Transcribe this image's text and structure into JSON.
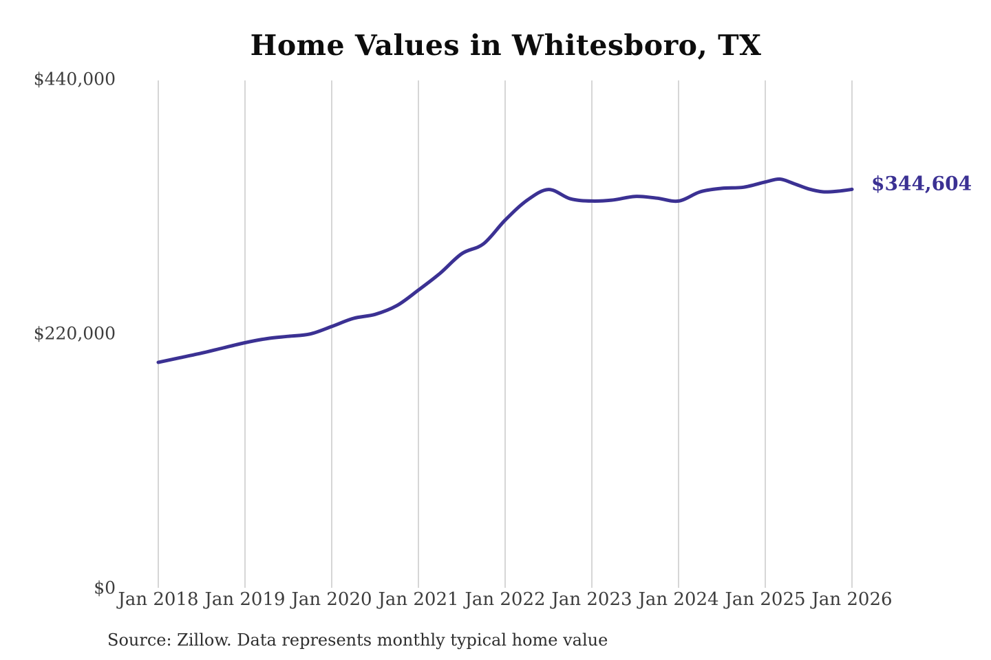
{
  "chart": {
    "title": "Home Values in Whitesboro, TX",
    "latest_value_label": "$344,604",
    "source": "Source: Zillow. Data represents monthly typical home value"
  },
  "colors": {
    "line": "#3b3193",
    "annotation_text": "#3b3193",
    "gridline": "#cccccc",
    "axis_text": "#3d3d3d",
    "title_text": "#0d0d0d",
    "background": "#ffffff"
  },
  "chart_data": {
    "type": "line",
    "title": "Home Values in Whitesboro, TX",
    "series_name": "Monthly typical home value",
    "unit": "USD",
    "xlabel": "",
    "ylabel": "",
    "x_range": [
      "Jan 2018",
      "Jan 2026"
    ],
    "ylim": [
      0,
      440000
    ],
    "grid": "vertical-only",
    "legend": "none",
    "x_ticks": [
      "Jan 2018",
      "Jan 2019",
      "Jan 2020",
      "Jan 2021",
      "Jan 2022",
      "Jan 2023",
      "Jan 2024",
      "Jan 2025",
      "Jan 2026"
    ],
    "y_ticks": [
      {
        "label": "$0",
        "value": 0
      },
      {
        "label": "$220,000",
        "value": 220000
      },
      {
        "label": "$440,000",
        "value": 440000
      }
    ],
    "annotation": {
      "text": "$344,604",
      "value": 344604,
      "position": "end-of-line"
    },
    "points": [
      {
        "date": "2018-01",
        "value": 195000
      },
      {
        "date": "2018-04",
        "value": 199000
      },
      {
        "date": "2018-07",
        "value": 203000
      },
      {
        "date": "2018-10",
        "value": 207500
      },
      {
        "date": "2019-01",
        "value": 212000
      },
      {
        "date": "2019-04",
        "value": 215500
      },
      {
        "date": "2019-07",
        "value": 217500
      },
      {
        "date": "2019-10",
        "value": 219500
      },
      {
        "date": "2020-01",
        "value": 226000
      },
      {
        "date": "2020-04",
        "value": 233000
      },
      {
        "date": "2020-07",
        "value": 236500
      },
      {
        "date": "2020-10",
        "value": 244000
      },
      {
        "date": "2021-01",
        "value": 257500
      },
      {
        "date": "2021-04",
        "value": 272000
      },
      {
        "date": "2021-07",
        "value": 289000
      },
      {
        "date": "2021-10",
        "value": 297500
      },
      {
        "date": "2022-01",
        "value": 318000
      },
      {
        "date": "2022-04",
        "value": 335000
      },
      {
        "date": "2022-07",
        "value": 344500
      },
      {
        "date": "2022-10",
        "value": 336500
      },
      {
        "date": "2023-01",
        "value": 334500
      },
      {
        "date": "2023-04",
        "value": 335500
      },
      {
        "date": "2023-07",
        "value": 338500
      },
      {
        "date": "2023-10",
        "value": 337000
      },
      {
        "date": "2024-01",
        "value": 334500
      },
      {
        "date": "2024-04",
        "value": 342500
      },
      {
        "date": "2024-07",
        "value": 345500
      },
      {
        "date": "2024-10",
        "value": 346500
      },
      {
        "date": "2025-01",
        "value": 351000
      },
      {
        "date": "2025-03",
        "value": 353500
      },
      {
        "date": "2025-05",
        "value": 349500
      },
      {
        "date": "2025-07",
        "value": 345000
      },
      {
        "date": "2025-09",
        "value": 342500
      },
      {
        "date": "2025-11",
        "value": 343000
      },
      {
        "date": "2026-01",
        "value": 344604
      }
    ]
  }
}
